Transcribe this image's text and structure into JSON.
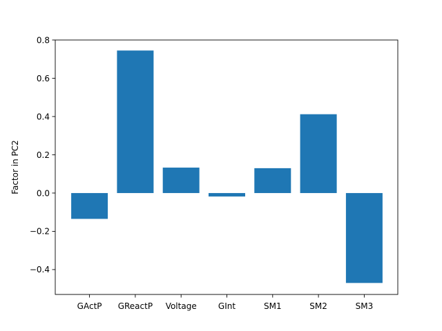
{
  "chart_data": {
    "type": "bar",
    "title": "",
    "xlabel": "",
    "ylabel": "Factor in PC2",
    "categories": [
      "GActP",
      "GReactP",
      "Voltage",
      "GInt",
      "SM1",
      "SM2",
      "SM3"
    ],
    "values": [
      -0.135,
      0.745,
      0.133,
      -0.018,
      0.13,
      0.412,
      -0.47
    ],
    "ylim": [
      -0.53,
      0.8
    ],
    "yticks": [
      -0.4,
      -0.2,
      0.0,
      0.2,
      0.4,
      0.6,
      0.8
    ],
    "ytick_labels": [
      "−0.4",
      "−0.2",
      "0.0",
      "0.2",
      "0.4",
      "0.6",
      "0.8"
    ],
    "bar_color": "#1f77b4",
    "grid": false,
    "legend": "none"
  }
}
